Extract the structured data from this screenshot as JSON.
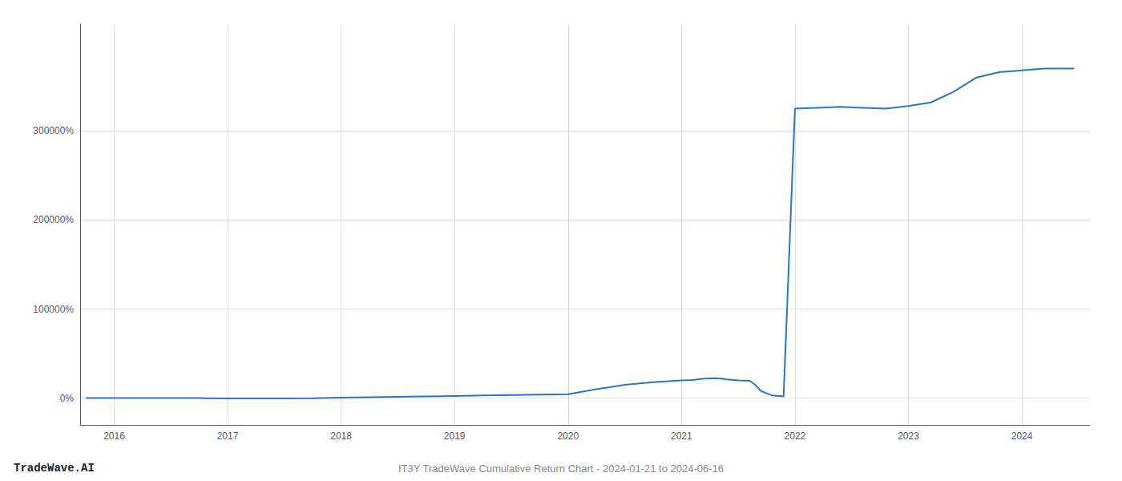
{
  "chart_data": {
    "type": "line",
    "title": "IT3Y TradeWave Cumulative Return Chart - 2024-01-21 to 2024-06-16",
    "annotations": [
      "TradeWave.AI"
    ],
    "x": [
      2015.75,
      2016.0,
      2016.25,
      2016.5,
      2016.75,
      2017.0,
      2017.25,
      2017.5,
      2017.75,
      2018.0,
      2018.25,
      2018.5,
      2018.75,
      2019.0,
      2019.25,
      2019.5,
      2019.75,
      2020.0,
      2020.25,
      2020.5,
      2020.75,
      2021.0,
      2021.1,
      2021.2,
      2021.3,
      2021.35,
      2021.4,
      2021.5,
      2021.6,
      2021.65,
      2021.7,
      2021.8,
      2021.9,
      2022.0,
      2022.2,
      2022.4,
      2022.6,
      2022.8,
      2023.0,
      2023.2,
      2023.4,
      2023.6,
      2023.8,
      2024.0,
      2024.2,
      2024.46
    ],
    "values": [
      200,
      200,
      150,
      100,
      80,
      -300,
      -250,
      -200,
      -100,
      500,
      1000,
      1500,
      2000,
      2500,
      3000,
      3500,
      4000,
      4500,
      10000,
      15000,
      18000,
      20000,
      20500,
      22000,
      22500,
      22000,
      21000,
      20000,
      19500,
      15000,
      8000,
      3000,
      2000,
      325000,
      326000,
      327000,
      326000,
      325000,
      328000,
      332000,
      344000,
      360000,
      366000,
      368000,
      370000,
      370000
    ],
    "color": "#2878bd",
    "xlim": [
      2015.7,
      2024.6
    ],
    "ylim": [
      -30000,
      420000
    ],
    "xticks": [
      2016,
      2017,
      2018,
      2019,
      2020,
      2021,
      2022,
      2023,
      2024
    ],
    "yticks": [
      {
        "value": 0,
        "label": "0%"
      },
      {
        "value": 100000,
        "label": "100000%"
      },
      {
        "value": 200000,
        "label": "200000%"
      },
      {
        "value": 300000,
        "label": "300000%"
      }
    ],
    "grid": true
  }
}
